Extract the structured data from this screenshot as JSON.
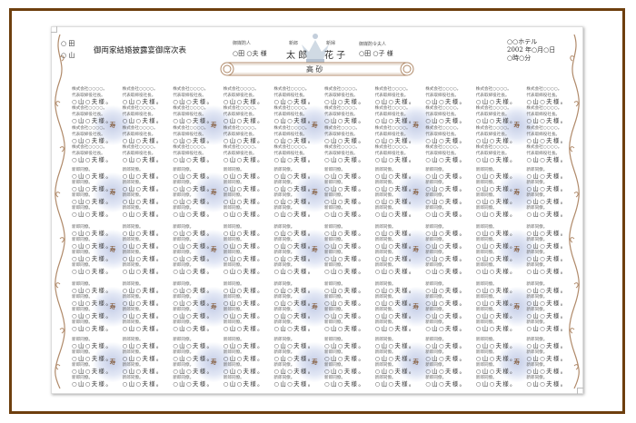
{
  "header": {
    "family_left": [
      "○ 田",
      "○ 山"
    ],
    "title": "御両家結婚披露宴御席次表",
    "matchmaker": {
      "label": "御媒酌人",
      "name": "○田 ○夫 様"
    },
    "groom": {
      "label": "新郎",
      "name": "太 郎"
    },
    "bride": {
      "label": "新婦",
      "name": "花 子"
    },
    "matchmaker_wife": {
      "label": "御媒酌令夫人",
      "name": "○田 ○子 様"
    },
    "banner_text": "高 砂",
    "venue": "○○ホテル",
    "date": "2002 年○月○日",
    "time": "○時○分"
  },
  "colors": {
    "frame": "#6e3f0e",
    "ornament": "#b08a6a",
    "kotobuki_glow": "#a0aed6",
    "kotobuki_text": "#7a4a20"
  },
  "table_mark": "寿",
  "blocks": [
    {
      "columns": 10,
      "entries_per_column": 4,
      "lines": [
        "株式会社○○○○。",
        "代表取締役社長。"
      ],
      "name": "○山○夫様。"
    },
    {
      "columns": 10,
      "entries_per_column": 4,
      "lines": [
        "新郎同僚。"
      ],
      "name": "○山○夫様。"
    },
    {
      "columns": 10,
      "entries_per_column": 4,
      "lines": [
        "新郎同僚。"
      ],
      "name": "○山○夫様。"
    },
    {
      "columns": 10,
      "entries_per_column": 4,
      "lines": [
        "新郎同僚。"
      ],
      "name": "○山○夫様。"
    },
    {
      "columns": 10,
      "entries_per_column": 4,
      "lines": [
        "新郎同僚。"
      ],
      "name": "○山○夫様。"
    }
  ]
}
